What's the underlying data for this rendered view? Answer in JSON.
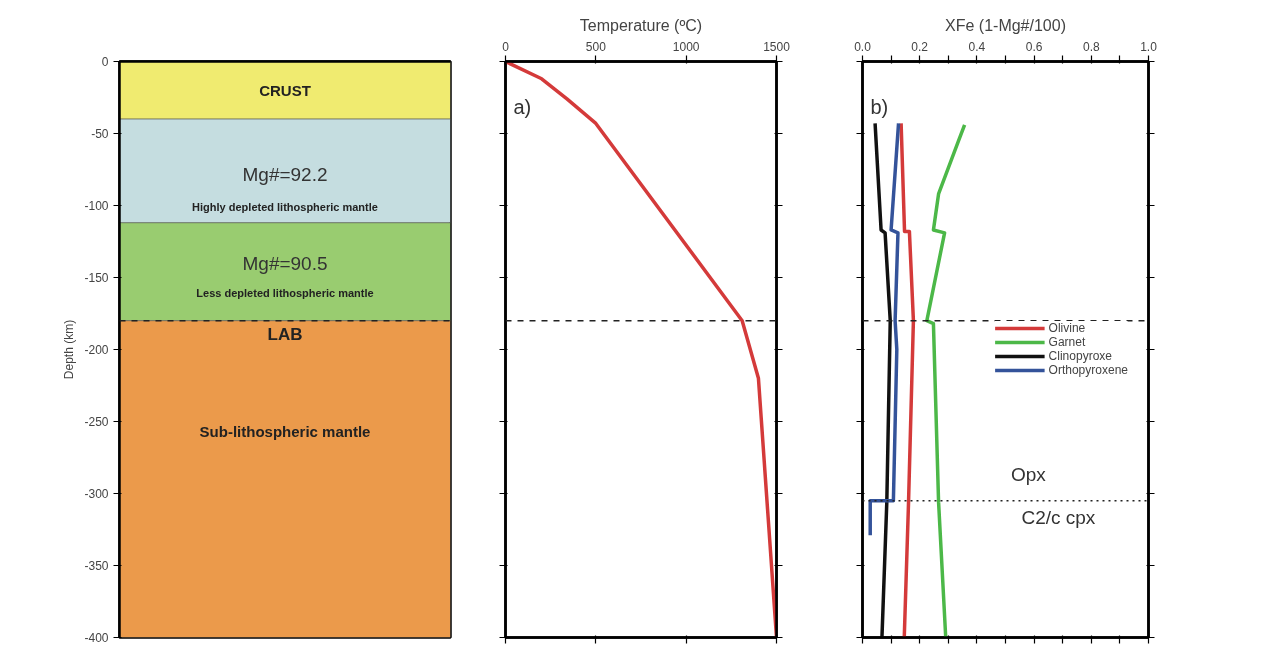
{
  "chart_data": [
    {
      "type": "bar",
      "stacked": true,
      "categories": [
        null
      ],
      "ylabel": "Depth (km)",
      "ylim": [
        -400,
        0
      ],
      "yticks": [
        0,
        -50,
        -100,
        -150,
        -200,
        -250,
        -300,
        -350,
        -400
      ],
      "tick_labels": "y",
      "series": [
        {
          "name": "CRUST",
          "color": "#f0eb70",
          "values": [
            -40
          ]
        },
        {
          "name": "Highly depleted lithospheric mantle",
          "color": "#c5dde0",
          "values": [
            -72
          ]
        },
        {
          "name": "Less depleted lithospheric mantle",
          "color": "#99cc70",
          "values": [
            -68
          ]
        },
        {
          "name": "Sub-lithospheric mantle",
          "color": "#eb9a4b",
          "values": [
            -220
          ]
        }
      ],
      "annotations": [
        "0",
        "Mg#=92.2",
        "Mg#=90.5"
      ],
      "ref_lines": [
        {
          "axis": "y",
          "value": -180,
          "label": "LAB",
          "line_style": "dashed",
          "color": "#222222"
        }
      ]
    },
    {
      "type": "line",
      "xlabel": "Temperature (ºC)",
      "xlim": [
        0,
        1500
      ],
      "xticks": [
        0,
        500,
        1000,
        1500
      ],
      "ylim": [
        -400,
        0
      ],
      "yticks": [
        0,
        -50,
        -100,
        -150,
        -200,
        -250,
        -300,
        -350,
        -400
      ],
      "tick_labels": "x",
      "series": [
        {
          "color": "#d43a3a",
          "x": [
            0,
            200,
            340,
            500,
            1310,
            1400,
            1500
          ],
          "values": [
            0,
            -12,
            -26,
            -43,
            -180,
            -220,
            -400
          ]
        }
      ],
      "annotations": [
        "a)"
      ],
      "ref_lines": [
        {
          "axis": "y",
          "value": -180,
          "line_style": "dashed",
          "color": "#222222"
        }
      ]
    },
    {
      "type": "line",
      "xlabel": "XFe (1-Mg#/100)",
      "xlim": [
        0,
        1
      ],
      "xticks": [
        {
          "value": 0,
          "label": "0.0"
        },
        {
          "value": 0.1,
          "label": null
        },
        {
          "value": 0.2,
          "label": "0.2"
        },
        {
          "value": 0.3,
          "label": null
        },
        {
          "value": 0.4,
          "label": "0.4"
        },
        {
          "value": 0.5,
          "label": null
        },
        {
          "value": 0.6,
          "label": "0.6"
        },
        {
          "value": 0.7,
          "label": null
        },
        {
          "value": 0.8,
          "label": "0.8"
        },
        {
          "value": 0.9,
          "label": null
        },
        {
          "value": 1,
          "label": "1.0"
        }
      ],
      "ylim": [
        -400,
        0
      ],
      "yticks": [
        0,
        -50,
        -100,
        -150,
        -200,
        -250,
        -300,
        -350,
        -400
      ],
      "tick_labels": "x",
      "legend": "right",
      "series": [
        {
          "name": "Olivine",
          "color": "#d43a3a",
          "x": [
            0.135,
            0.147,
            0.164,
            0.178,
            0.161,
            0.146
          ],
          "values": [
            -43,
            -118,
            -118,
            -180,
            -306,
            -400
          ]
        },
        {
          "name": "Garnet",
          "color": "#4cb848",
          "x": [
            0.357,
            0.336,
            0.266,
            0.248,
            0.287,
            0.225,
            0.248,
            0.266,
            0.291
          ],
          "values": [
            -44,
            -55,
            -92,
            -117,
            -119,
            -180,
            -182,
            -306,
            -400
          ]
        },
        {
          "name": "Clinopyroxe",
          "color": "#111111",
          "x": [
            0.044,
            0.065,
            0.079,
            0.097,
            0.085,
            0.068
          ],
          "values": [
            -43,
            -117,
            -119,
            -180,
            -306,
            -400
          ]
        },
        {
          "name": "Orthopyroxene",
          "color": "#34539a",
          "x": [
            0.126,
            0.1,
            0.124,
            0.114,
            0.12,
            0.108,
            0.027,
            0.027
          ],
          "values": [
            -43,
            -117,
            -119,
            -180,
            -200,
            -305,
            -305,
            -329
          ]
        }
      ],
      "annotations": [
        "b)",
        "Opx",
        "C2/c cpx"
      ],
      "ref_lines": [
        {
          "axis": "y",
          "value": -180,
          "line_style": "dashed",
          "color": "#222222"
        },
        {
          "axis": "y",
          "value": -305,
          "line_style": "dotted",
          "color": "#222222"
        }
      ]
    }
  ]
}
